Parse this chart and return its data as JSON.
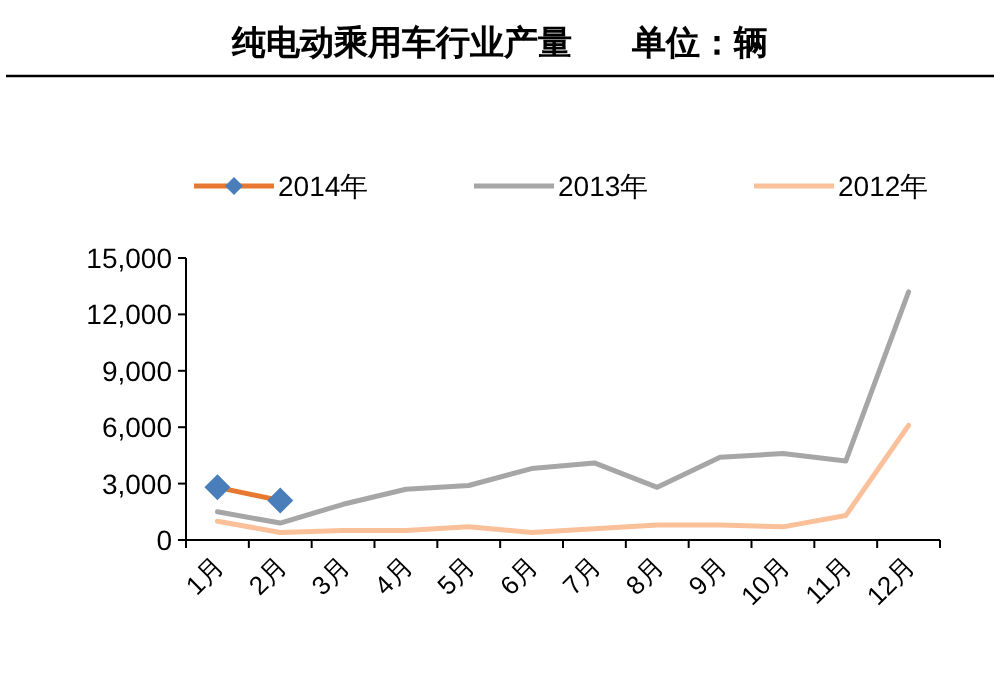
{
  "chart_data": {
    "type": "line",
    "title": "纯电动乘用车行业产量",
    "subtitle": "单位：辆",
    "categories": [
      "1月",
      "2月",
      "3月",
      "4月",
      "5月",
      "6月",
      "7月",
      "8月",
      "9月",
      "10月",
      "11月",
      "12月"
    ],
    "series": [
      {
        "name": "2014年",
        "color": "#e8782f",
        "colors": [
          "#4a7ebb",
          "#4a7ebb",
          null,
          null,
          null,
          null,
          null,
          null,
          null,
          null,
          null,
          null
        ],
        "marker": "diamond",
        "values": [
          2800,
          2100,
          null,
          null,
          null,
          null,
          null,
          null,
          null,
          null,
          null,
          null
        ]
      },
      {
        "name": "2013年",
        "color": "#a6a6a6",
        "marker": "none",
        "values": [
          1500,
          900,
          1900,
          2700,
          2900,
          3800,
          4100,
          2800,
          4400,
          4600,
          4200,
          13200
        ]
      },
      {
        "name": "2012年",
        "color": "#f9c09a",
        "marker": "none",
        "values": [
          1000,
          400,
          500,
          500,
          700,
          400,
          600,
          800,
          800,
          700,
          1300,
          6100
        ]
      }
    ],
    "ylim": [
      0,
      15000
    ],
    "yticks": [
      {
        "value": 0,
        "label": "0"
      },
      {
        "value": 3000,
        "label": "3,000"
      },
      {
        "value": 6000,
        "label": "6,000"
      },
      {
        "value": 9000,
        "label": "9,000"
      },
      {
        "value": 12000,
        "label": "12,000"
      },
      {
        "value": 15000,
        "label": "15,000"
      }
    ],
    "legend": "top",
    "grid": false
  }
}
